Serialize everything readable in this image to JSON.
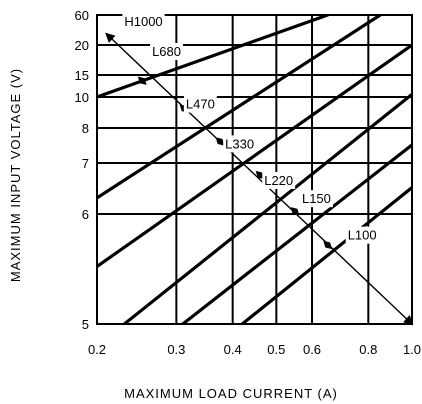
{
  "chart_data": {
    "type": "line",
    "title": "",
    "xlabel": "MAXIMUM LOAD CURRENT (A)",
    "ylabel": "MAXIMUM INPUT VOLTAGE (V)",
    "xscale": "log",
    "yscale": "nonlinear",
    "xlim": [
      0.2,
      1.0
    ],
    "ylim": [
      5,
      60
    ],
    "grid": true,
    "x_ticks": [
      {
        "value": 0.2,
        "label": "0.2"
      },
      {
        "value": 0.3,
        "label": "0.3"
      },
      {
        "value": 0.4,
        "label": "0.4"
      },
      {
        "value": 0.5,
        "label": "0.5"
      },
      {
        "value": 0.6,
        "label": "0.6"
      },
      {
        "value": 0.8,
        "label": "0.8"
      },
      {
        "value": 1.0,
        "label": "1.0"
      }
    ],
    "y_ticks": [
      {
        "value": 5,
        "label": "5"
      },
      {
        "value": 6,
        "label": "6"
      },
      {
        "value": 7,
        "label": "7"
      },
      {
        "value": 8,
        "label": "8"
      },
      {
        "value": 10,
        "label": "10"
      },
      {
        "value": 15,
        "label": "15"
      },
      {
        "value": 20,
        "label": "20"
      },
      {
        "value": 60,
        "label": "60"
      }
    ],
    "boundary_lines": [
      {
        "x": [
          0.2,
          0.65
        ],
        "y": [
          10,
          60
        ]
      },
      {
        "x": [
          0.2,
          0.85
        ],
        "y": [
          6.3,
          60
        ]
      },
      {
        "x": [
          0.2,
          1.0
        ],
        "y": [
          5.5,
          20
        ]
      },
      {
        "x": [
          0.23,
          1.0
        ],
        "y": [
          5,
          10.5
        ]
      },
      {
        "x": [
          0.31,
          1.0
        ],
        "y": [
          5,
          7.5
        ]
      },
      {
        "x": [
          0.42,
          1.0
        ],
        "y": [
          5,
          6.5
        ]
      }
    ],
    "series_labels": [
      {
        "label": "H1000",
        "x": 0.23,
        "y": 40
      },
      {
        "label": "L680",
        "x": 0.265,
        "y": 18
      },
      {
        "label": "L470",
        "x": 0.315,
        "y": 9.2
      },
      {
        "label": "L330",
        "x": 0.385,
        "y": 7.4
      },
      {
        "label": "L220",
        "x": 0.47,
        "y": 6.55
      },
      {
        "label": "L150",
        "x": 0.57,
        "y": 6.2
      },
      {
        "label": "L100",
        "x": 0.72,
        "y": 5.75
      }
    ],
    "divider_arrow": {
      "from": {
        "x": 0.21,
        "y": 30
      },
      "to": {
        "x": 1.0,
        "y": 5
      }
    },
    "divider_ticks": [
      {
        "x": 0.252,
        "y": 13.5
      },
      {
        "x": 0.312,
        "y": 9.2
      },
      {
        "x": 0.375,
        "y": 7.6
      },
      {
        "x": 0.46,
        "y": 6.75
      },
      {
        "x": 0.55,
        "y": 6.05
      },
      {
        "x": 0.65,
        "y": 5.7
      }
    ]
  }
}
